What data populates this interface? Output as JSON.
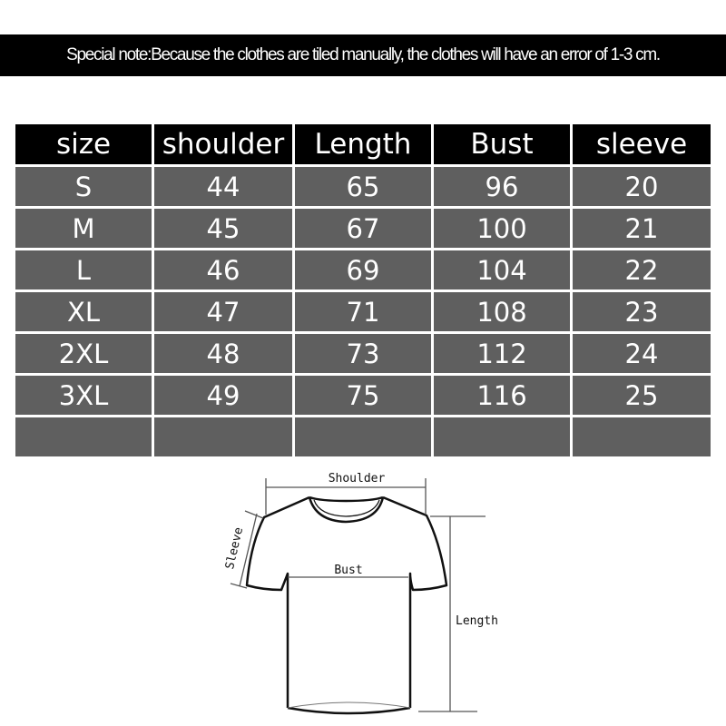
{
  "note": "Special note:Because the clothes are tiled manually, the clothes will have an error of 1-3 cm.",
  "table": {
    "headers": [
      "size",
      "shoulder",
      "Length",
      "Bust",
      "sleeve"
    ],
    "rows": [
      [
        "S",
        "44",
        "65",
        "96",
        "20"
      ],
      [
        "M",
        "45",
        "67",
        "100",
        "21"
      ],
      [
        "L",
        "46",
        "69",
        "104",
        "22"
      ],
      [
        "XL",
        "47",
        "71",
        "108",
        "23"
      ],
      [
        "2XL",
        "48",
        "73",
        "112",
        "24"
      ],
      [
        "3XL",
        "49",
        "75",
        "116",
        "25"
      ],
      [
        "",
        "",
        "",
        "",
        ""
      ]
    ]
  },
  "diagram": {
    "shoulder": "Shoulder",
    "sleeve": "Sleeve",
    "bust": "Bust",
    "length": "Length"
  },
  "colors": {
    "header_bg": "#000000",
    "row_bg": "#5f5f5f",
    "text": "#ffffff"
  }
}
